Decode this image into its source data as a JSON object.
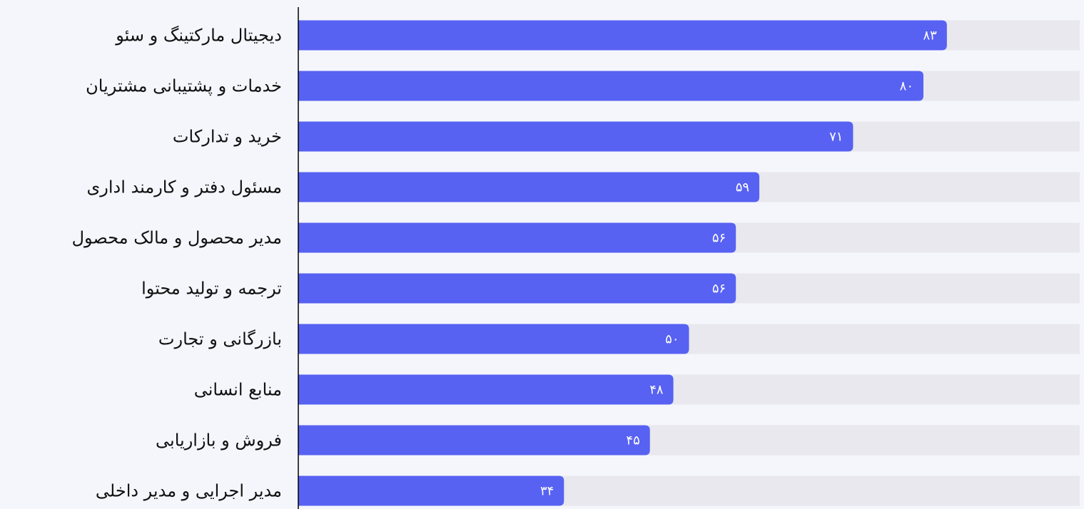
{
  "chart_data": {
    "type": "bar",
    "orientation": "horizontal",
    "direction": "ltr-bars-with-rtl-labels",
    "categories": [
      "دیجیتال مارکتینگ و سئو",
      "خدمات و پشتیبانی مشتریان",
      "خرید و تدارکات",
      "مسئول دفتر و کارمند اداری",
      "مدیر محصول و مالک محصول",
      "ترجمه و تولید محتوا",
      "بازرگانی و تجارت",
      "منابع انسانی",
      "فروش و بازاریابی",
      "مدیر اجرایی و مدیر داخلی"
    ],
    "values": [
      83,
      80,
      71,
      59,
      56,
      56,
      50,
      48,
      45,
      34
    ],
    "value_labels": [
      "۸۳",
      "۸۰",
      "۷۱",
      "۵۹",
      "۵۶",
      "۵۶",
      "۵۰",
      "۴۸",
      "۴۵",
      "۳۴"
    ],
    "xlim": [
      0,
      100
    ],
    "grid": false,
    "legend": "none",
    "colors": {
      "bar": "#5762f2",
      "track": "#e8e8ee",
      "axis": "#000000",
      "background": "#f5f6fc",
      "value_text": "#ffffff",
      "label_text": "#111111"
    }
  }
}
